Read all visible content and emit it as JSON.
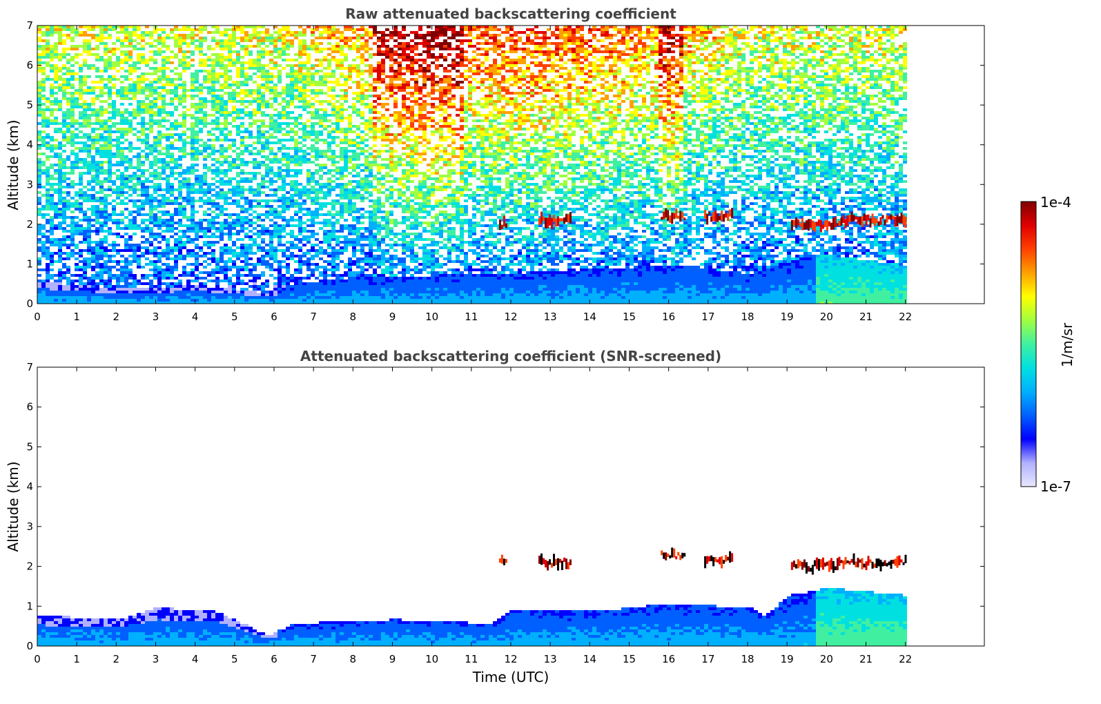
{
  "chart_data": [
    {
      "type": "heatmap",
      "title": "Raw attenuated backscattering coefficient",
      "xlabel": "",
      "ylabel": "Altitude (km)",
      "xticks": [
        0,
        1,
        2,
        3,
        4,
        5,
        6,
        7,
        8,
        9,
        10,
        11,
        12,
        13,
        14,
        15,
        16,
        17,
        18,
        19,
        20,
        21,
        22
      ],
      "yticks": [
        0,
        1,
        2,
        3,
        4,
        5,
        6,
        7
      ],
      "xlim": [
        0,
        24
      ],
      "ylim": [
        0,
        7
      ],
      "data_extent_x": [
        0,
        22
      ],
      "screening": "none",
      "features": {
        "boundary_layer_top_km": [
          [
            0,
            0.6
          ],
          [
            2,
            0.4
          ],
          [
            4,
            0.5
          ],
          [
            5.8,
            0.3
          ],
          [
            6.5,
            0.55
          ],
          [
            8,
            0.7
          ],
          [
            12,
            0.8
          ],
          [
            16,
            1.0
          ],
          [
            18,
            0.8
          ],
          [
            19.7,
            1.3
          ],
          [
            22,
            1.0
          ]
        ],
        "cloud_layers": [
          {
            "x_start": 11.7,
            "x_end": 11.9,
            "altitude_km": 2.0
          },
          {
            "x_start": 12.7,
            "x_end": 13.5,
            "altitude_km": 2.1
          },
          {
            "x_start": 15.8,
            "x_end": 16.4,
            "altitude_km": 2.2
          },
          {
            "x_start": 16.9,
            "x_end": 17.6,
            "altitude_km": 2.2
          },
          {
            "x_start": 19.1,
            "x_end": 20.3,
            "altitude_km": 2.0
          },
          {
            "x_start": 20.3,
            "x_end": 22.0,
            "altitude_km": 2.1
          }
        ]
      }
    },
    {
      "type": "heatmap",
      "title": "Attenuated backscattering coefficient (SNR-screened)",
      "xlabel": "Time (UTC)",
      "ylabel": "Altitude (km)",
      "xticks": [
        0,
        1,
        2,
        3,
        4,
        5,
        6,
        7,
        8,
        9,
        10,
        11,
        12,
        13,
        14,
        15,
        16,
        17,
        18,
        19,
        20,
        21,
        22
      ],
      "yticks": [
        0,
        1,
        2,
        3,
        4,
        5,
        6,
        7
      ],
      "xlim": [
        0,
        24
      ],
      "ylim": [
        0,
        7
      ],
      "data_extent_x": [
        0,
        22
      ],
      "screening": "SNR",
      "features": {
        "boundary_layer_top_km": [
          [
            0,
            0.8
          ],
          [
            2,
            0.7
          ],
          [
            3,
            1.0
          ],
          [
            4.5,
            0.9
          ],
          [
            5.8,
            0.3
          ],
          [
            6.5,
            0.6
          ],
          [
            9,
            0.7
          ],
          [
            11.5,
            0.6
          ],
          [
            12,
            0.95
          ],
          [
            14,
            0.9
          ],
          [
            16,
            1.1
          ],
          [
            18,
            1.0
          ],
          [
            18.4,
            0.8
          ],
          [
            19,
            1.3
          ],
          [
            20,
            1.5
          ],
          [
            22,
            1.3
          ]
        ],
        "cloud_layers": [
          {
            "x_start": 11.7,
            "x_end": 11.9,
            "altitude_km": 2.1
          },
          {
            "x_start": 12.7,
            "x_end": 13.5,
            "altitude_km": 2.1
          },
          {
            "x_start": 15.8,
            "x_end": 16.4,
            "altitude_km": 2.3
          },
          {
            "x_start": 16.9,
            "x_end": 17.6,
            "altitude_km": 2.15
          },
          {
            "x_start": 19.1,
            "x_end": 20.3,
            "altitude_km": 2.0
          },
          {
            "x_start": 20.3,
            "x_end": 22.0,
            "altitude_km": 2.1
          }
        ]
      }
    }
  ],
  "colorbar": {
    "label": "1/m/sr",
    "max_label": "1e-4",
    "min_label": "1e-7",
    "scale": "log",
    "range": [
      1e-07,
      0.0001
    ],
    "colormap": "jet",
    "colors": [
      "#e8e8ff",
      "#b0b0ff",
      "#0000ff",
      "#0060ff",
      "#00b0ff",
      "#00e0e0",
      "#40f0a0",
      "#a0ff40",
      "#ffff00",
      "#ffa000",
      "#ff4000",
      "#e00000",
      "#800000"
    ]
  }
}
